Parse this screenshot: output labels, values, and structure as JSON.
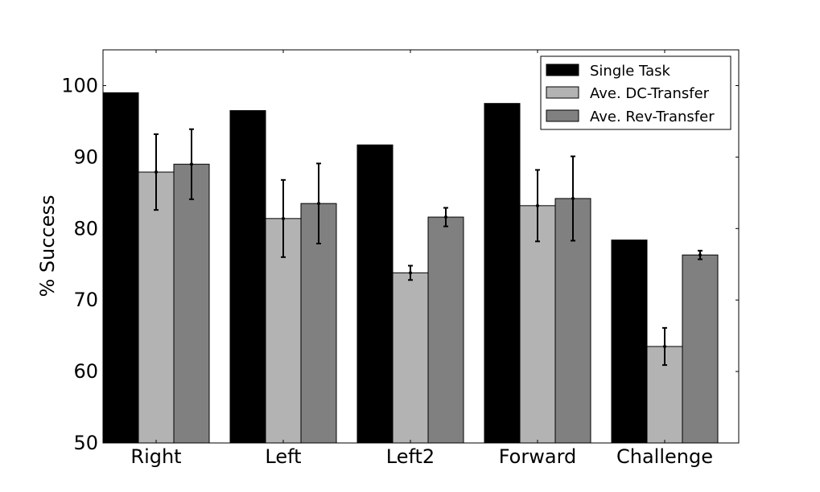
{
  "chart_data": {
    "type": "bar",
    "title": "",
    "xlabel": "",
    "ylabel": "% Success",
    "ylim": [
      50,
      105
    ],
    "yticks": [
      50,
      60,
      70,
      80,
      90,
      100
    ],
    "categories": [
      "Right",
      "Left",
      "Left2",
      "Forward",
      "Challenge"
    ],
    "series": [
      {
        "name": "Single Task",
        "color": "#000000",
        "values": [
          99.0,
          96.5,
          91.7,
          97.5,
          78.4
        ],
        "errors": null
      },
      {
        "name": "Ave. DC-Transfer",
        "color": "#b3b3b3",
        "values": [
          87.9,
          81.4,
          73.8,
          83.2,
          63.5
        ],
        "errors": [
          5.3,
          5.4,
          1.0,
          5.0,
          2.6
        ]
      },
      {
        "name": "Ave. Rev-Transfer",
        "color": "#808080",
        "values": [
          89.0,
          83.5,
          81.6,
          84.2,
          76.3
        ],
        "errors": [
          4.9,
          5.6,
          1.3,
          5.9,
          0.6
        ]
      }
    ],
    "grid": false,
    "legend_position": "upper-right"
  }
}
